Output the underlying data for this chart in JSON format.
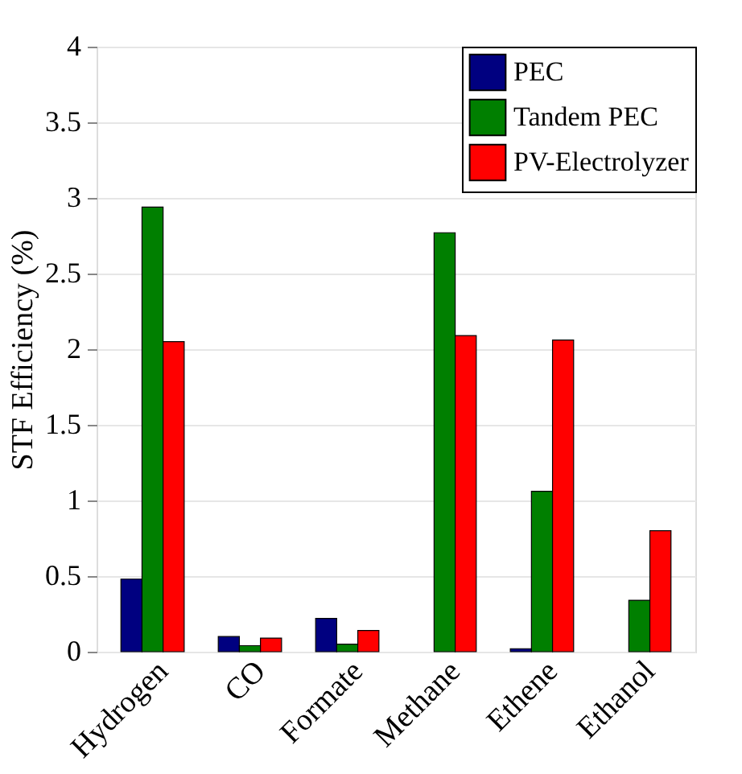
{
  "chart_data": {
    "type": "bar",
    "ylabel": "STF Efficiency (%)",
    "categories": [
      "Hydrogen",
      "CO",
      "Formate",
      "Methane",
      "Ethene",
      "Ethanol"
    ],
    "series": [
      {
        "name": "PEC",
        "color": "#000080",
        "values": [
          0.48,
          0.1,
          0.22,
          0,
          0.02,
          0
        ]
      },
      {
        "name": "Tandem PEC",
        "color": "#007f00",
        "values": [
          2.94,
          0.04,
          0.05,
          2.77,
          1.06,
          0.34
        ]
      },
      {
        "name": "PV-Electrolyzer",
        "color": "#ff0000",
        "values": [
          2.05,
          0.09,
          0.14,
          2.09,
          2.06,
          0.8
        ]
      }
    ],
    "ylim": [
      0,
      4
    ],
    "yticks": [
      0,
      0.5,
      1,
      1.5,
      2,
      2.5,
      3,
      3.5,
      4
    ],
    "grid": "y",
    "legend": "top right"
  }
}
